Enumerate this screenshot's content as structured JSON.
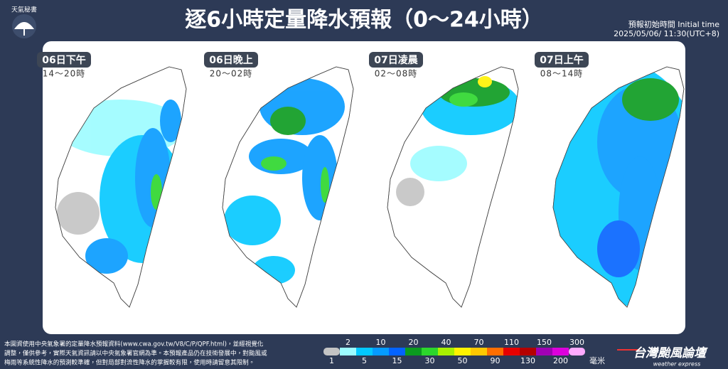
{
  "header": {
    "logo": "天氣秘書",
    "title": "逐6小時定量降水預報（0～24小時）",
    "init_label": "預報初始時間 Initial time",
    "init_time": "2025/05/06/ 11:30(UTC+8)"
  },
  "panels": [
    {
      "day": "06日下午",
      "hours": "14～20時"
    },
    {
      "day": "06日晚上",
      "hours": "20～02時"
    },
    {
      "day": "07日凌晨",
      "hours": "02～08時"
    },
    {
      "day": "07日上午",
      "hours": "08～14時"
    }
  ],
  "legend": {
    "thresholds": [
      1,
      2,
      5,
      10,
      15,
      20,
      30,
      40,
      50,
      70,
      90,
      110,
      130,
      150,
      200,
      300
    ],
    "unit": "毫米",
    "colors": [
      "#c4c4c4",
      "#9cfcff",
      "#03c8ff",
      "#059bff",
      "#0363ff",
      "#0b9b1f",
      "#2cd62c",
      "#a8f000",
      "#fff200",
      "#ffc800",
      "#ff6e00",
      "#e60000",
      "#b40000",
      "#a000b4",
      "#dc00dc",
      "#ffaaff"
    ]
  },
  "footer": {
    "note_lines": [
      "本圖資使用中央氣象署的定量降水預報資料(www.cwa.gov.tw/V8/C/P/QPF.html)，並經視覺化",
      "調整，僅供參考，實際天氣資訊請以中央氣象署官網為準。本預報產品仍在技術發展中，對颱風或",
      "梅雨等系統性降水的預測較準確，但對局部對流性降水的掌握較有限，使用時請留意其限制。"
    ],
    "brand": "台灣颱風論壇",
    "brand_sub": "weather express"
  }
}
